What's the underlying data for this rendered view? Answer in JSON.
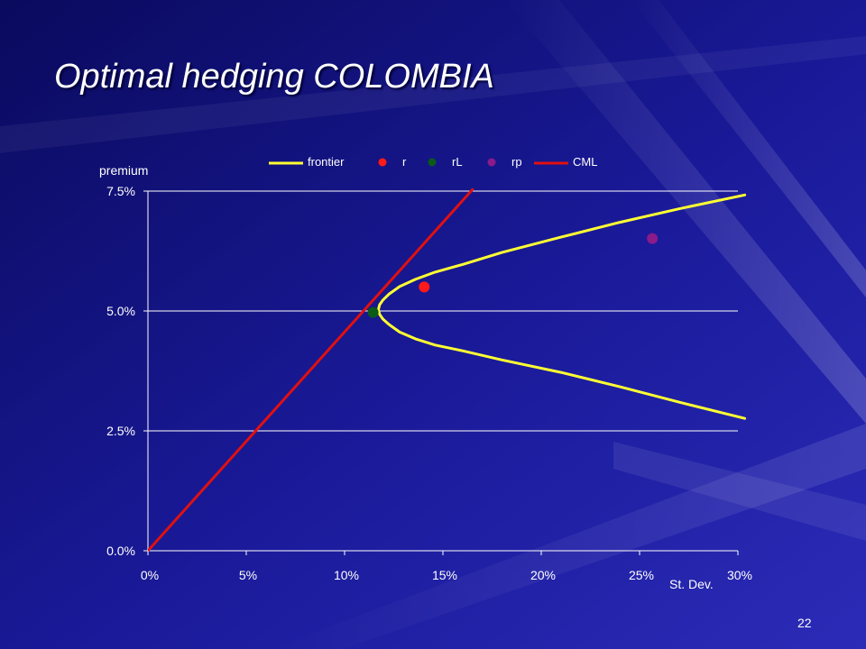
{
  "slide": {
    "title": "Optimal hedging COLOMBIA",
    "page_number": "22"
  },
  "colors": {
    "background_dark": "#0a0a5e",
    "background_light": "#2b2bb8",
    "frontier": "#ffff33",
    "r": "#ff1a1a",
    "rL": "#0b5a1a",
    "rp": "#8b1a8b",
    "CML": "#e01010",
    "grid": "#ffffff",
    "text": "#ffffff"
  },
  "chart_data": {
    "type": "scatter",
    "title": "",
    "xlabel": "St. Dev.",
    "ylabel": "premium",
    "xlim": [
      0,
      0.3
    ],
    "ylim": [
      0,
      0.075
    ],
    "x_ticks": [
      "0%",
      "5%",
      "10%",
      "15%",
      "20%",
      "25%",
      "30%"
    ],
    "y_ticks": [
      "0.0%",
      "2.5%",
      "5.0%",
      "7.5%"
    ],
    "x_tick_values": [
      0,
      0.05,
      0.1,
      0.15,
      0.2,
      0.25,
      0.3
    ],
    "y_tick_values": [
      0,
      0.025,
      0.05,
      0.075
    ],
    "grid": "horizontal",
    "legend_position": "top",
    "series": [
      {
        "name": "frontier",
        "type": "line",
        "color": "#ffff33",
        "x": [
          0.3035,
          0.27,
          0.24,
          0.21,
          0.18,
          0.16,
          0.146,
          0.136,
          0.128,
          0.1225,
          0.1195,
          0.1178,
          0.1172,
          0.1178,
          0.1195,
          0.1225,
          0.128,
          0.136,
          0.146,
          0.16,
          0.18,
          0.21,
          0.24,
          0.27,
          0.3035
        ],
        "y": [
          0.0276,
          0.031,
          0.0342,
          0.0372,
          0.0398,
          0.0417,
          0.0429,
          0.0442,
          0.0456,
          0.0472,
          0.0483,
          0.0493,
          0.0503,
          0.0513,
          0.0523,
          0.0535,
          0.0551,
          0.0566,
          0.0581,
          0.0597,
          0.0622,
          0.0654,
          0.0685,
          0.0713,
          0.0742
        ]
      },
      {
        "name": "r",
        "type": "point",
        "color": "#ff1a1a",
        "x": [
          0.1405
        ],
        "y": [
          0.055
        ]
      },
      {
        "name": "rL",
        "type": "point",
        "color": "#0b5a1a",
        "x": [
          0.1145
        ],
        "y": [
          0.0497
        ]
      },
      {
        "name": "rp",
        "type": "point",
        "color": "#8b1a8b",
        "x": [
          0.2565
        ],
        "y": [
          0.0651
        ]
      },
      {
        "name": "CML",
        "type": "line",
        "color": "#e01010",
        "x": [
          0,
          0.165
        ],
        "y": [
          0,
          0.0753
        ]
      }
    ]
  }
}
